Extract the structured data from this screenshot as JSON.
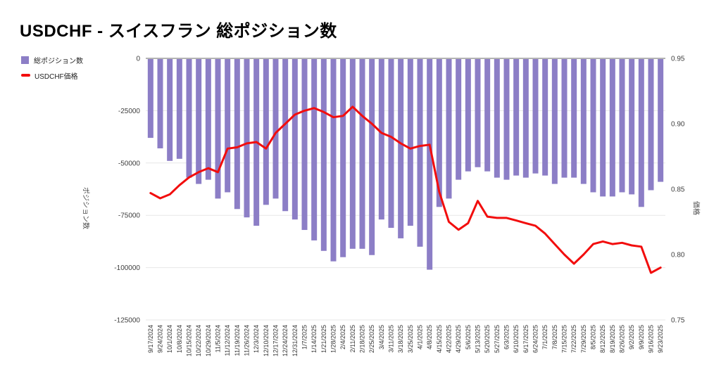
{
  "title": "USDCHF - スイスフラン 総ポジション数",
  "legend": {
    "series1": "総ポジション数",
    "series2": "USDCHF価格"
  },
  "axes": {
    "left_title": "ポジション数",
    "right_title": "価格",
    "left_tick_labels": [
      "0",
      "-25000",
      "-50000",
      "-75000",
      "-100000",
      "-125000"
    ],
    "right_tick_labels": [
      "0.95",
      "0.90",
      "0.85",
      "0.80",
      "0.75"
    ]
  },
  "colors": {
    "bar": "#8c7ec6",
    "line": "#f20d0d",
    "grid": "#e7e7e7",
    "zero_line": "#9a9a9a",
    "tick_text": "#404040",
    "date_text": "#333333"
  },
  "chart_data": {
    "type": "bar+line combo, dual axis",
    "title": "USDCHF - スイスフラン 総ポジション数",
    "categories": [
      "9/17/2024",
      "9/24/2024",
      "10/1/2024",
      "10/8/2024",
      "10/15/2024",
      "10/22/2024",
      "10/29/2024",
      "11/5/2024",
      "11/12/2024",
      "11/19/2024",
      "11/26/2024",
      "12/3/2024",
      "12/10/2024",
      "12/17/2024",
      "12/24/2024",
      "12/31/2024",
      "1/7/2025",
      "1/14/2025",
      "1/21/2025",
      "1/28/2025",
      "2/4/2025",
      "2/11/2025",
      "2/18/2025",
      "2/25/2025",
      "3/4/2025",
      "3/11/2025",
      "3/18/2025",
      "3/25/2025",
      "4/1/2025",
      "4/8/2025",
      "4/15/2025",
      "4/22/2025",
      "4/29/2025",
      "5/6/2025",
      "5/13/2025",
      "5/20/2025",
      "5/27/2025",
      "6/3/2025",
      "6/10/2025",
      "6/17/2025",
      "6/24/2025",
      "7/1/2025",
      "7/8/2025",
      "7/15/2025",
      "7/22/2025",
      "7/29/2025",
      "8/5/2025",
      "8/12/2025",
      "8/19/2025",
      "8/26/2025",
      "9/2/2025",
      "9/9/2025",
      "9/16/2025",
      "9/23/2025"
    ],
    "series": [
      {
        "name": "総ポジション数",
        "type": "bar",
        "axis": "left",
        "values": [
          -38000,
          -43000,
          -49000,
          -48000,
          -57000,
          -60000,
          -58000,
          -67000,
          -64000,
          -72000,
          -76000,
          -80000,
          -70000,
          -67000,
          -73000,
          -77000,
          -82000,
          -87000,
          -92000,
          -97000,
          -95000,
          -91000,
          -91000,
          -94000,
          -77000,
          -81000,
          -86000,
          -80000,
          -90000,
          -101000,
          -71000,
          -67000,
          -58000,
          -54000,
          -52000,
          -54000,
          -57000,
          -58000,
          -56000,
          -57000,
          -55000,
          -56000,
          -60000,
          -57000,
          -57000,
          -60000,
          -64000,
          -66000,
          -66000,
          -64000,
          -65000,
          -71000,
          -63000,
          -59000
        ]
      },
      {
        "name": "USDCHF価格",
        "type": "line",
        "axis": "right",
        "values": [
          0.847,
          0.843,
          0.846,
          0.853,
          0.859,
          0.863,
          0.866,
          0.863,
          0.881,
          0.882,
          0.885,
          0.886,
          0.881,
          0.893,
          0.9,
          0.907,
          0.91,
          0.912,
          0.909,
          0.905,
          0.906,
          0.913,
          0.906,
          0.9,
          0.893,
          0.89,
          0.885,
          0.881,
          0.883,
          0.884,
          0.848,
          0.825,
          0.819,
          0.824,
          0.841,
          0.829,
          0.828,
          0.828,
          0.826,
          0.824,
          0.822,
          0.816,
          0.808,
          0.8,
          0.793,
          0.8,
          0.808,
          0.81,
          0.808,
          0.809,
          0.807,
          0.806,
          0.786,
          0.79
        ]
      }
    ],
    "left_axis": {
      "label": "ポジション数",
      "min": -125000,
      "max": 0,
      "ticks": [
        0,
        -25000,
        -50000,
        -75000,
        -100000,
        -125000
      ]
    },
    "right_axis": {
      "label": "価格",
      "min": 0.75,
      "max": 0.95,
      "ticks": [
        0.95,
        0.9,
        0.85,
        0.8,
        0.75
      ]
    },
    "grid": true,
    "legend_position": "top-left"
  }
}
